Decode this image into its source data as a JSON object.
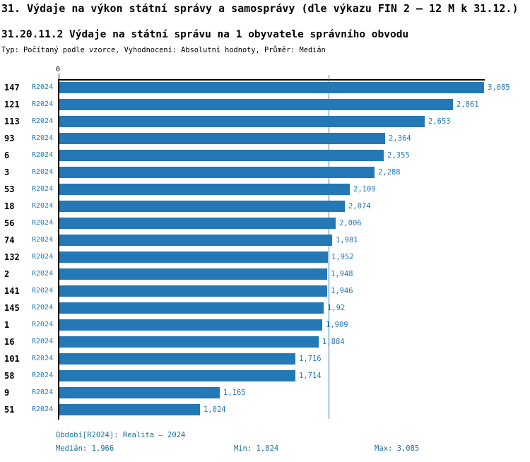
{
  "header": {
    "title": "31. Výdaje na výkon státní správy a samosprávy (dle výkazu FIN 2 – 12 M k 31.12.)",
    "subtitle": "31.20.11.2 Výdaje na státní správu na 1 obyvatele správního obvodu",
    "meta": "Typ: Počítaný podle vzorce, Vyhodnocení: Absolutní hodnoty, Průměr: Medián"
  },
  "axis": {
    "zero_label": "0"
  },
  "colors": {
    "bar": "#2478b5",
    "value_label": "#2478b5",
    "footer_text": "#1a7099",
    "axis": "#000000"
  },
  "chart_data": {
    "type": "bar",
    "orientation": "horizontal",
    "series_label": "R2024",
    "xlim": [
      0,
      3085
    ],
    "median_value": 1966,
    "grid": "median-line-only",
    "rows": [
      {
        "rank": "147",
        "period": "R2024",
        "value": 3085,
        "label": "3,085"
      },
      {
        "rank": "121",
        "period": "R2024",
        "value": 2861,
        "label": "2,861"
      },
      {
        "rank": "113",
        "period": "R2024",
        "value": 2653,
        "label": "2,653"
      },
      {
        "rank": "93",
        "period": "R2024",
        "value": 2364,
        "label": "2,364"
      },
      {
        "rank": "6",
        "period": "R2024",
        "value": 2355,
        "label": "2,355"
      },
      {
        "rank": "3",
        "period": "R2024",
        "value": 2288,
        "label": "2,288"
      },
      {
        "rank": "53",
        "period": "R2024",
        "value": 2109,
        "label": "2,109"
      },
      {
        "rank": "18",
        "period": "R2024",
        "value": 2074,
        "label": "2,074"
      },
      {
        "rank": "56",
        "period": "R2024",
        "value": 2006,
        "label": "2,006"
      },
      {
        "rank": "74",
        "period": "R2024",
        "value": 1981,
        "label": "1,981"
      },
      {
        "rank": "132",
        "period": "R2024",
        "value": 1952,
        "label": "1,952"
      },
      {
        "rank": "2",
        "period": "R2024",
        "value": 1948,
        "label": "1,948"
      },
      {
        "rank": "141",
        "period": "R2024",
        "value": 1946,
        "label": "1,946"
      },
      {
        "rank": "145",
        "period": "R2024",
        "value": 1920,
        "label": "1,92"
      },
      {
        "rank": "1",
        "period": "R2024",
        "value": 1909,
        "label": "1,909"
      },
      {
        "rank": "16",
        "period": "R2024",
        "value": 1884,
        "label": "1,884"
      },
      {
        "rank": "101",
        "period": "R2024",
        "value": 1716,
        "label": "1,716"
      },
      {
        "rank": "58",
        "period": "R2024",
        "value": 1714,
        "label": "1,714"
      },
      {
        "rank": "9",
        "period": "R2024",
        "value": 1165,
        "label": "1,165"
      },
      {
        "rank": "51",
        "period": "R2024",
        "value": 1024,
        "label": "1,024"
      }
    ]
  },
  "footer": {
    "period": "Období[R2024]: Realita – 2024",
    "median": "Medián: 1,966",
    "min": "Min: 1,024",
    "max": "Max: 3,085"
  }
}
